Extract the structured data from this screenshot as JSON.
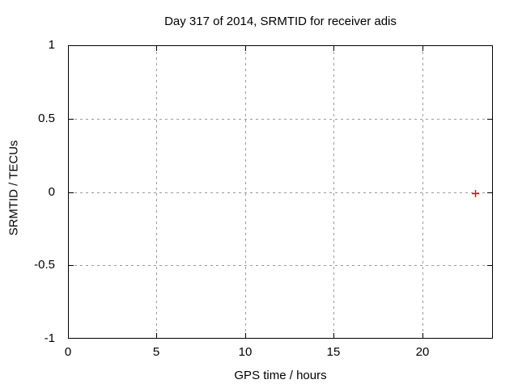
{
  "chart_data": {
    "type": "scatter",
    "title": "Day 317 of 2014, SRMTID for receiver adis",
    "xlabel": "GPS time / hours",
    "ylabel": "SRMTID / TECUs",
    "xlim": [
      0,
      24
    ],
    "ylim": [
      -1,
      1
    ],
    "xticks": [
      0,
      5,
      10,
      15,
      20
    ],
    "yticks": [
      -1,
      -0.5,
      0,
      0.5,
      1
    ],
    "grid": true,
    "legend_visible": false,
    "series": [
      {
        "marker": "plus",
        "color": "#ff0000",
        "points": [
          [
            23,
            0
          ]
        ]
      }
    ]
  },
  "colors": {
    "background": "#ffffff",
    "axis": "#000000",
    "grid": "#999999",
    "text": "#000000",
    "marker": "#ff0000"
  }
}
